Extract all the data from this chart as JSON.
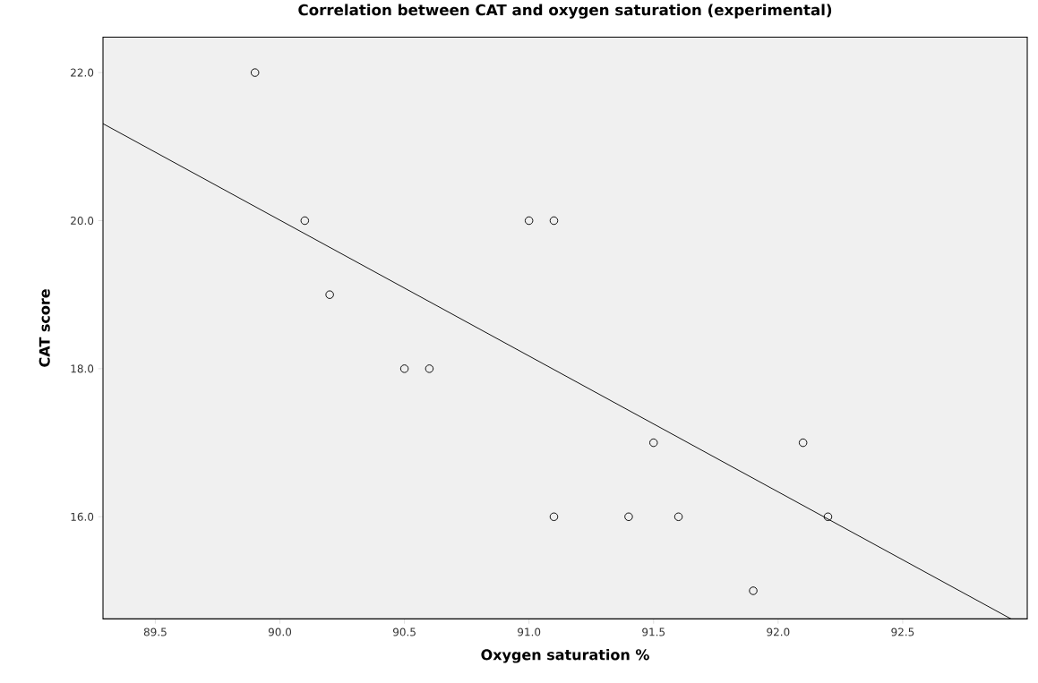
{
  "chart_data": {
    "type": "scatter",
    "title": "Correlation between CAT and oxygen saturation (experimental)",
    "xlabel": "Oxygen saturation %",
    "ylabel": "CAT score",
    "xlim": [
      89.29,
      93.0
    ],
    "ylim": [
      14.62,
      22.48
    ],
    "xticks": [
      {
        "value": 89.5,
        "label": "89.5"
      },
      {
        "value": 90.0,
        "label": "90.0"
      },
      {
        "value": 90.5,
        "label": "90.5"
      },
      {
        "value": 91.0,
        "label": "91.0"
      },
      {
        "value": 91.5,
        "label": "91.5"
      },
      {
        "value": 92.0,
        "label": "92.0"
      },
      {
        "value": 92.5,
        "label": "92.5"
      }
    ],
    "yticks": [
      {
        "value": 16,
        "label": "16.0"
      },
      {
        "value": 18,
        "label": "18.0"
      },
      {
        "value": 20,
        "label": "20.0"
      },
      {
        "value": 22,
        "label": "22.0"
      }
    ],
    "grid": false,
    "series": [
      {
        "marker": "circle",
        "color": "#000000",
        "x": [
          89.9,
          90.1,
          90.2,
          90.5,
          90.6,
          91.0,
          91.1,
          91.1,
          91.4,
          91.5,
          91.6,
          91.9,
          92.1,
          92.2
        ],
        "values": [
          22,
          20,
          19,
          18,
          18,
          20,
          20,
          16,
          16,
          17,
          16,
          15,
          17,
          16
        ]
      },
      {
        "type": "line",
        "marker": "none",
        "color": "#000000",
        "x": [
          89.29,
          92.935
        ],
        "values": [
          21.31,
          14.62
        ]
      }
    ]
  }
}
